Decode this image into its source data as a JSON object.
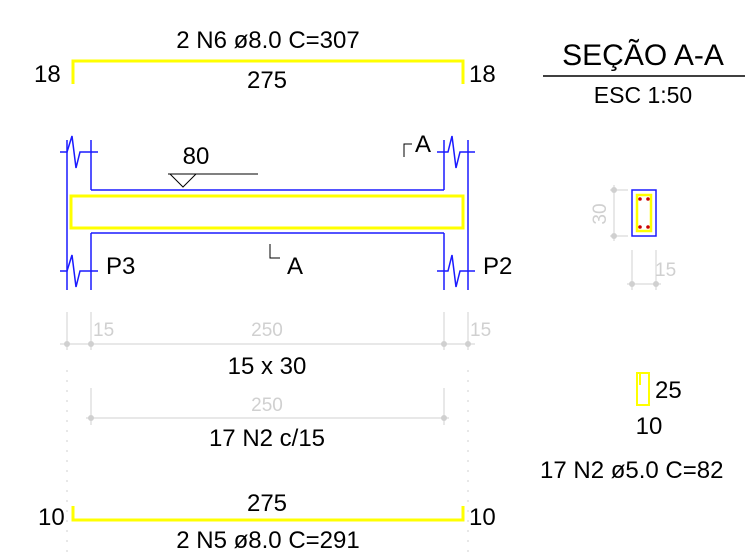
{
  "top_bar": {
    "label": "2 N6 ø8.0  C=307",
    "length": "275",
    "hook_left": "18",
    "hook_right": "18"
  },
  "beam": {
    "load_value": "80",
    "section_mark": "A",
    "pillar_left": "P3",
    "pillar_right": "P2",
    "dim_left": "15",
    "dim_span": "250",
    "dim_right": "15",
    "cross_section": "15 x 30"
  },
  "stirrups": {
    "span": "250",
    "label": "17 N2 c/15"
  },
  "bottom_bar": {
    "length": "275",
    "label": "2 N5 ø8.0  C=291",
    "hook_left": "10",
    "hook_right": "10"
  },
  "section": {
    "title": "SEÇÃO A-A",
    "scale": "ESC 1:50",
    "height": "30",
    "width": "15"
  },
  "stirrup_detail": {
    "height": "25",
    "width": "10",
    "label": "17 N2 ø5.0  C=82"
  },
  "colors": {
    "rebar": "#ffff00",
    "outline": "#1a1aff",
    "dimension": "#d0d0d0",
    "text": "#000000"
  }
}
